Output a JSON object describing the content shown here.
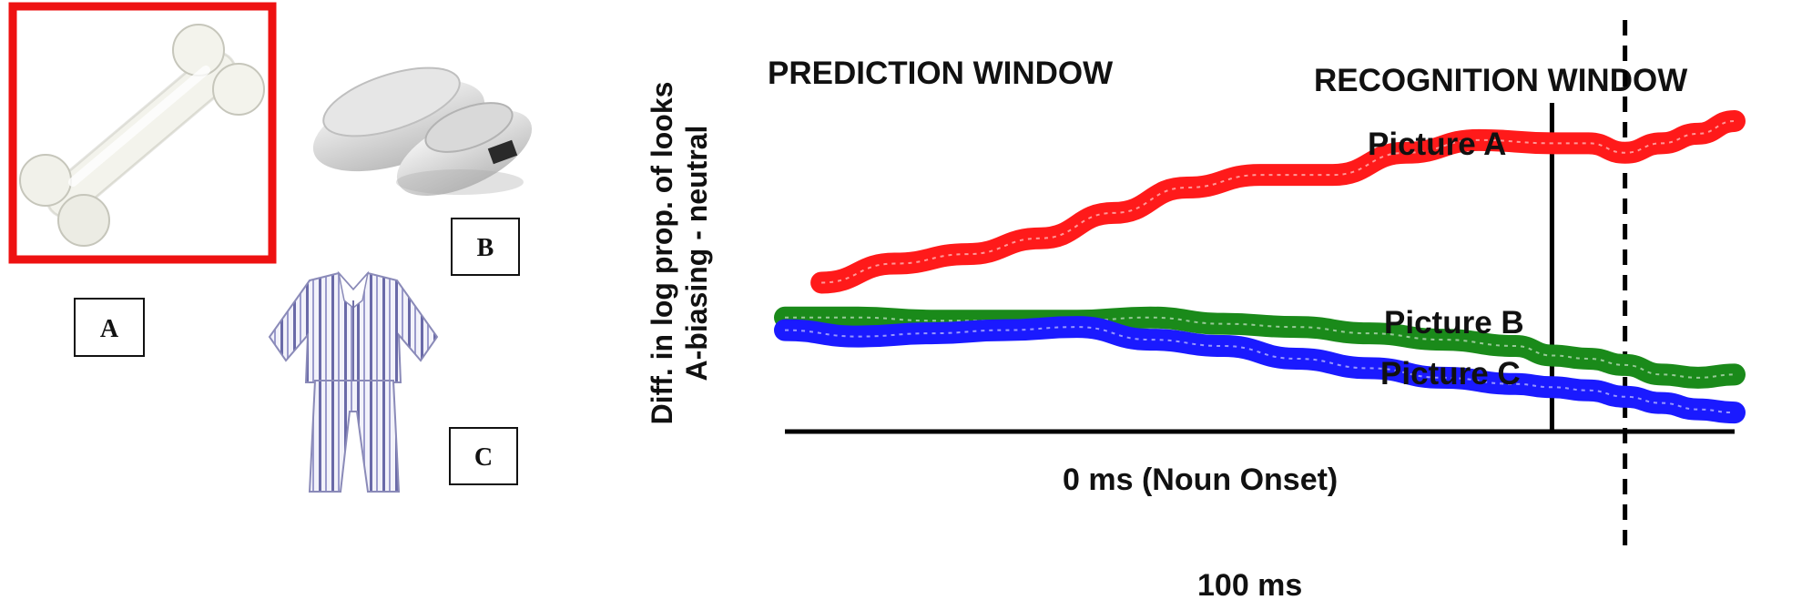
{
  "pictures": {
    "a": {
      "label": "A",
      "icon": "bone-icon",
      "selected": true
    },
    "b": {
      "label": "B",
      "icon": "slippers-icon"
    },
    "c": {
      "label": "C",
      "icon": "pajamas-icon"
    }
  },
  "chart_data": {
    "type": "line",
    "ylabel_line1": "Diff. in log prop. of looks",
    "ylabel_line2": "A-biasing - neutral",
    "windows": {
      "left": "PREDICTION WINDOW",
      "right": "RECOGNITION WINDOW"
    },
    "markers": {
      "onset": "0 ms (Noun Onset)",
      "shift": "100 ms"
    },
    "x_range_ms": [
      -1050,
      250
    ],
    "y_range": [
      0,
      1
    ],
    "series": [
      {
        "name": "Picture A",
        "color": "#ff1a1a",
        "x": [
          -1000,
          -900,
          -800,
          -700,
          -600,
          -500,
          -400,
          -300,
          -200,
          -100,
          0,
          50,
          100,
          150,
          200,
          250
        ],
        "y": [
          0.47,
          0.53,
          0.56,
          0.61,
          0.69,
          0.77,
          0.81,
          0.81,
          0.88,
          0.92,
          0.91,
          0.91,
          0.88,
          0.91,
          0.94,
          0.98
        ]
      },
      {
        "name": "Picture B",
        "color": "#1a8a1a",
        "x": [
          -1050,
          -950,
          -850,
          -750,
          -650,
          -550,
          -450,
          -350,
          -250,
          -150,
          -50,
          0,
          50,
          100,
          150,
          200,
          250
        ],
        "y": [
          0.36,
          0.36,
          0.35,
          0.35,
          0.35,
          0.36,
          0.34,
          0.33,
          0.31,
          0.29,
          0.27,
          0.24,
          0.23,
          0.21,
          0.18,
          0.17,
          0.18
        ]
      },
      {
        "name": "Picture C",
        "color": "#1a1aff",
        "x": [
          -1050,
          -950,
          -850,
          -750,
          -650,
          -550,
          -450,
          -350,
          -250,
          -150,
          -50,
          0,
          50,
          100,
          150,
          200,
          250
        ],
        "y": [
          0.32,
          0.3,
          0.31,
          0.32,
          0.33,
          0.29,
          0.27,
          0.23,
          0.2,
          0.17,
          0.15,
          0.14,
          0.13,
          0.11,
          0.09,
          0.07,
          0.06
        ]
      }
    ]
  }
}
